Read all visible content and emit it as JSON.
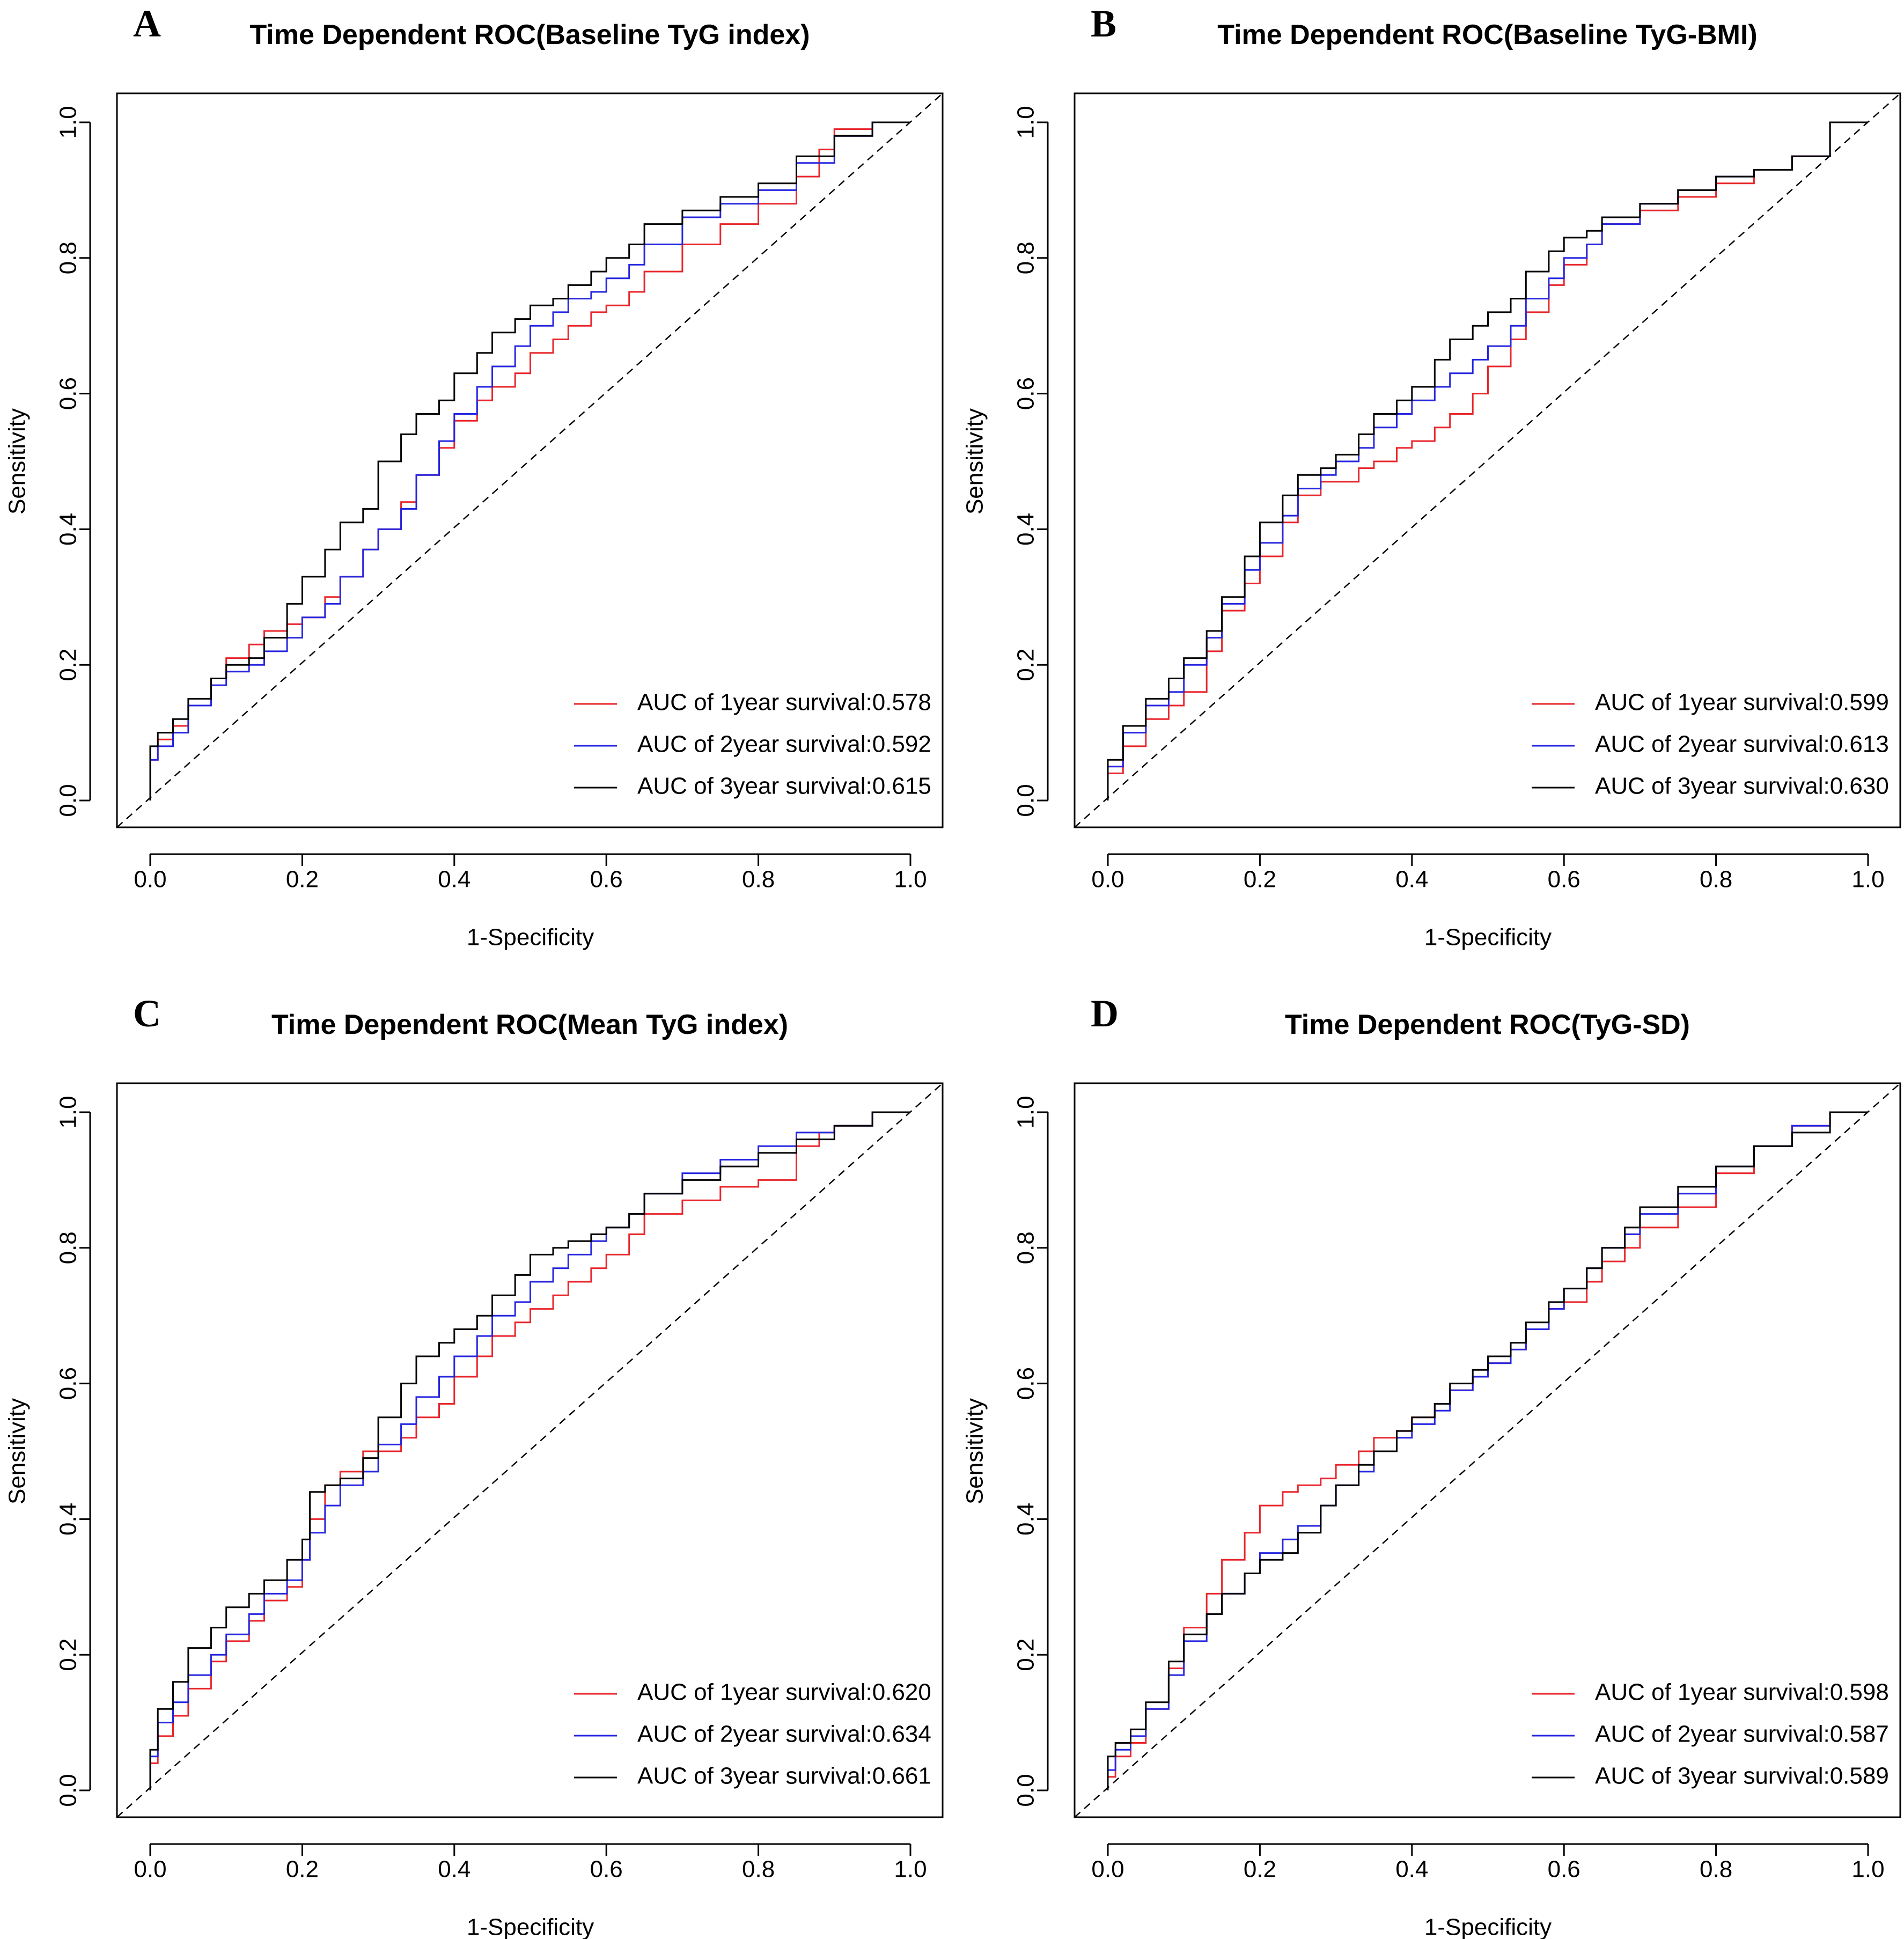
{
  "colors": {
    "1year": "#e8262b",
    "2year": "#2626e0",
    "3year": "#000000",
    "diagonal": "#000000"
  },
  "chart_data": [
    {
      "panel": "A",
      "type": "line",
      "title": "Time Dependent ROC(Baseline TyG index)",
      "xlabel": "1-Specificity",
      "ylabel": "Sensitivity",
      "xlim": [
        0,
        1
      ],
      "ylim": [
        0,
        1
      ],
      "xticks": [
        "0.0",
        "0.2",
        "0.4",
        "0.6",
        "0.8",
        "1.0"
      ],
      "yticks": [
        "0.0",
        "0.2",
        "0.4",
        "0.6",
        "0.8",
        "1.0"
      ],
      "legend_position": "bottom-right",
      "series": [
        {
          "name": "AUC of 1year survival:0.578",
          "key": "1year",
          "auc": 0.578,
          "x": [
            0,
            0,
            0.01,
            0.03,
            0.05,
            0.08,
            0.1,
            0.13,
            0.15,
            0.18,
            0.2,
            0.23,
            0.25,
            0.28,
            0.3,
            0.33,
            0.35,
            0.38,
            0.4,
            0.43,
            0.45,
            0.48,
            0.5,
            0.53,
            0.55,
            0.58,
            0.6,
            0.63,
            0.65,
            0.7,
            0.75,
            0.8,
            0.85,
            0.88,
            0.9,
            0.95,
            1.0
          ],
          "y": [
            0,
            0.03,
            0.06,
            0.09,
            0.11,
            0.14,
            0.18,
            0.21,
            0.23,
            0.25,
            0.26,
            0.27,
            0.3,
            0.33,
            0.37,
            0.4,
            0.44,
            0.48,
            0.52,
            0.56,
            0.59,
            0.61,
            0.63,
            0.66,
            0.68,
            0.7,
            0.72,
            0.73,
            0.75,
            0.78,
            0.82,
            0.85,
            0.88,
            0.92,
            0.96,
            0.99,
            1.0
          ]
        },
        {
          "name": "AUC of 2year survival:0.592",
          "key": "2year",
          "auc": 0.592,
          "x": [
            0,
            0,
            0.01,
            0.03,
            0.05,
            0.08,
            0.1,
            0.13,
            0.15,
            0.18,
            0.2,
            0.23,
            0.25,
            0.28,
            0.3,
            0.33,
            0.35,
            0.38,
            0.4,
            0.43,
            0.45,
            0.48,
            0.5,
            0.53,
            0.55,
            0.58,
            0.6,
            0.63,
            0.65,
            0.7,
            0.75,
            0.8,
            0.85,
            0.9,
            0.95,
            1.0
          ],
          "y": [
            0,
            0.04,
            0.06,
            0.08,
            0.1,
            0.14,
            0.17,
            0.19,
            0.2,
            0.22,
            0.24,
            0.27,
            0.29,
            0.33,
            0.37,
            0.4,
            0.43,
            0.48,
            0.53,
            0.57,
            0.61,
            0.64,
            0.67,
            0.7,
            0.72,
            0.74,
            0.75,
            0.77,
            0.79,
            0.82,
            0.86,
            0.88,
            0.9,
            0.94,
            0.98,
            1.0
          ]
        },
        {
          "name": "AUC of 3year survival:0.615",
          "key": "3year",
          "auc": 0.615,
          "x": [
            0,
            0,
            0.01,
            0.03,
            0.05,
            0.08,
            0.1,
            0.13,
            0.15,
            0.18,
            0.2,
            0.23,
            0.25,
            0.28,
            0.3,
            0.33,
            0.35,
            0.38,
            0.4,
            0.43,
            0.45,
            0.48,
            0.5,
            0.53,
            0.55,
            0.58,
            0.6,
            0.63,
            0.65,
            0.7,
            0.75,
            0.8,
            0.85,
            0.9,
            0.95,
            1.0
          ],
          "y": [
            0,
            0.05,
            0.08,
            0.1,
            0.12,
            0.15,
            0.18,
            0.2,
            0.21,
            0.24,
            0.29,
            0.33,
            0.37,
            0.41,
            0.43,
            0.5,
            0.54,
            0.57,
            0.59,
            0.63,
            0.66,
            0.69,
            0.71,
            0.73,
            0.74,
            0.76,
            0.78,
            0.8,
            0.82,
            0.85,
            0.87,
            0.89,
            0.91,
            0.95,
            0.98,
            1.0
          ]
        }
      ]
    },
    {
      "panel": "B",
      "type": "line",
      "title": "Time Dependent ROC(Baseline TyG-BMI)",
      "xlabel": "1-Specificity",
      "ylabel": "Sensitivity",
      "xlim": [
        0,
        1
      ],
      "ylim": [
        0,
        1
      ],
      "xticks": [
        "0.0",
        "0.2",
        "0.4",
        "0.6",
        "0.8",
        "1.0"
      ],
      "yticks": [
        "0.0",
        "0.2",
        "0.4",
        "0.6",
        "0.8",
        "1.0"
      ],
      "legend_position": "bottom-right",
      "series": [
        {
          "name": "AUC of 1year survival:0.599",
          "key": "1year",
          "auc": 0.599,
          "x": [
            0,
            0.02,
            0.05,
            0.08,
            0.1,
            0.13,
            0.15,
            0.18,
            0.2,
            0.23,
            0.25,
            0.28,
            0.3,
            0.33,
            0.35,
            0.38,
            0.4,
            0.43,
            0.45,
            0.48,
            0.5,
            0.53,
            0.55,
            0.58,
            0.6,
            0.63,
            0.65,
            0.7,
            0.75,
            0.8,
            0.85,
            0.9,
            0.95,
            1.0
          ],
          "y": [
            0,
            0.04,
            0.08,
            0.12,
            0.14,
            0.16,
            0.22,
            0.28,
            0.32,
            0.36,
            0.41,
            0.45,
            0.47,
            0.47,
            0.49,
            0.5,
            0.52,
            0.53,
            0.55,
            0.57,
            0.6,
            0.64,
            0.68,
            0.72,
            0.76,
            0.79,
            0.82,
            0.85,
            0.87,
            0.89,
            0.91,
            0.93,
            0.95,
            1.0
          ]
        },
        {
          "name": "AUC of 2year survival:0.613",
          "key": "2year",
          "auc": 0.613,
          "x": [
            0,
            0.02,
            0.05,
            0.08,
            0.1,
            0.13,
            0.15,
            0.18,
            0.2,
            0.23,
            0.25,
            0.28,
            0.3,
            0.33,
            0.35,
            0.38,
            0.4,
            0.43,
            0.45,
            0.48,
            0.5,
            0.53,
            0.55,
            0.58,
            0.6,
            0.63,
            0.65,
            0.7,
            0.75,
            0.8,
            0.85,
            0.9,
            0.95,
            1.0
          ],
          "y": [
            0,
            0.05,
            0.1,
            0.14,
            0.16,
            0.2,
            0.24,
            0.29,
            0.34,
            0.38,
            0.42,
            0.46,
            0.48,
            0.5,
            0.52,
            0.55,
            0.57,
            0.59,
            0.61,
            0.63,
            0.65,
            0.67,
            0.7,
            0.74,
            0.77,
            0.8,
            0.82,
            0.85,
            0.88,
            0.9,
            0.92,
            0.93,
            0.95,
            1.0
          ]
        },
        {
          "name": "AUC of 3year survival:0.630",
          "key": "3year",
          "auc": 0.63,
          "x": [
            0,
            0.02,
            0.05,
            0.08,
            0.1,
            0.13,
            0.15,
            0.18,
            0.2,
            0.23,
            0.25,
            0.28,
            0.3,
            0.33,
            0.35,
            0.38,
            0.4,
            0.43,
            0.45,
            0.48,
            0.5,
            0.53,
            0.55,
            0.58,
            0.6,
            0.63,
            0.65,
            0.7,
            0.75,
            0.8,
            0.85,
            0.9,
            0.95,
            1.0
          ],
          "y": [
            0,
            0.06,
            0.11,
            0.15,
            0.18,
            0.21,
            0.25,
            0.3,
            0.36,
            0.41,
            0.45,
            0.48,
            0.49,
            0.51,
            0.54,
            0.57,
            0.59,
            0.61,
            0.65,
            0.68,
            0.7,
            0.72,
            0.74,
            0.78,
            0.81,
            0.83,
            0.84,
            0.86,
            0.88,
            0.9,
            0.92,
            0.93,
            0.95,
            1.0
          ]
        }
      ]
    },
    {
      "panel": "C",
      "type": "line",
      "title": "Time Dependent ROC(Mean TyG index)",
      "xlabel": "1-Specificity",
      "ylabel": "Sensitivity",
      "xlim": [
        0,
        1
      ],
      "ylim": [
        0,
        1
      ],
      "xticks": [
        "0.0",
        "0.2",
        "0.4",
        "0.6",
        "0.8",
        "1.0"
      ],
      "yticks": [
        "0.0",
        "0.2",
        "0.4",
        "0.6",
        "0.8",
        "1.0"
      ],
      "legend_position": "bottom-right",
      "series": [
        {
          "name": "AUC of 1year survival:0.620",
          "key": "1year",
          "auc": 0.62,
          "x": [
            0,
            0.01,
            0.03,
            0.05,
            0.08,
            0.1,
            0.13,
            0.15,
            0.18,
            0.2,
            0.21,
            0.23,
            0.25,
            0.28,
            0.3,
            0.33,
            0.35,
            0.38,
            0.4,
            0.43,
            0.45,
            0.48,
            0.5,
            0.53,
            0.55,
            0.58,
            0.6,
            0.63,
            0.65,
            0.7,
            0.75,
            0.8,
            0.85,
            0.88,
            0.9,
            0.95,
            1.0
          ],
          "y": [
            0,
            0.04,
            0.08,
            0.11,
            0.15,
            0.19,
            0.22,
            0.25,
            0.28,
            0.3,
            0.34,
            0.4,
            0.45,
            0.47,
            0.5,
            0.5,
            0.52,
            0.55,
            0.57,
            0.61,
            0.64,
            0.67,
            0.69,
            0.71,
            0.73,
            0.75,
            0.77,
            0.79,
            0.82,
            0.85,
            0.87,
            0.89,
            0.9,
            0.95,
            0.97,
            0.98,
            1.0
          ]
        },
        {
          "name": "AUC of 2year survival:0.634",
          "key": "2year",
          "auc": 0.634,
          "x": [
            0,
            0.01,
            0.03,
            0.05,
            0.08,
            0.1,
            0.13,
            0.15,
            0.18,
            0.2,
            0.21,
            0.23,
            0.25,
            0.28,
            0.3,
            0.33,
            0.35,
            0.38,
            0.4,
            0.43,
            0.45,
            0.48,
            0.5,
            0.53,
            0.55,
            0.58,
            0.6,
            0.63,
            0.65,
            0.7,
            0.75,
            0.8,
            0.85,
            0.9,
            0.95,
            1.0
          ],
          "y": [
            0,
            0.05,
            0.1,
            0.13,
            0.17,
            0.2,
            0.23,
            0.26,
            0.29,
            0.31,
            0.34,
            0.38,
            0.42,
            0.45,
            0.47,
            0.51,
            0.54,
            0.58,
            0.61,
            0.64,
            0.67,
            0.7,
            0.72,
            0.75,
            0.77,
            0.79,
            0.81,
            0.83,
            0.85,
            0.88,
            0.91,
            0.93,
            0.95,
            0.97,
            0.98,
            1.0
          ]
        },
        {
          "name": "AUC of 3year survival:0.661",
          "key": "3year",
          "auc": 0.661,
          "x": [
            0,
            0.01,
            0.03,
            0.05,
            0.08,
            0.1,
            0.13,
            0.15,
            0.18,
            0.2,
            0.21,
            0.23,
            0.25,
            0.28,
            0.3,
            0.33,
            0.35,
            0.38,
            0.4,
            0.43,
            0.45,
            0.48,
            0.5,
            0.53,
            0.55,
            0.58,
            0.6,
            0.63,
            0.65,
            0.7,
            0.75,
            0.8,
            0.85,
            0.9,
            0.95,
            1.0
          ],
          "y": [
            0,
            0.06,
            0.12,
            0.16,
            0.21,
            0.24,
            0.27,
            0.29,
            0.31,
            0.34,
            0.37,
            0.44,
            0.45,
            0.46,
            0.49,
            0.55,
            0.6,
            0.64,
            0.66,
            0.68,
            0.7,
            0.73,
            0.76,
            0.79,
            0.8,
            0.81,
            0.82,
            0.83,
            0.85,
            0.88,
            0.9,
            0.92,
            0.94,
            0.96,
            0.98,
            1.0
          ]
        }
      ]
    },
    {
      "panel": "D",
      "type": "line",
      "title": "Time Dependent ROC(TyG-SD)",
      "xlabel": "1-Specificity",
      "ylabel": "Sensitivity",
      "xlim": [
        0,
        1
      ],
      "ylim": [
        0,
        1
      ],
      "xticks": [
        "0.0",
        "0.2",
        "0.4",
        "0.6",
        "0.8",
        "1.0"
      ],
      "yticks": [
        "0.0",
        "0.2",
        "0.4",
        "0.6",
        "0.8",
        "1.0"
      ],
      "legend_position": "bottom-right",
      "series": [
        {
          "name": "AUC of 1year survival:0.598",
          "key": "1year",
          "auc": 0.598,
          "x": [
            0,
            0.01,
            0.03,
            0.05,
            0.08,
            0.1,
            0.13,
            0.15,
            0.18,
            0.2,
            0.23,
            0.25,
            0.28,
            0.3,
            0.33,
            0.35,
            0.38,
            0.4,
            0.43,
            0.45,
            0.48,
            0.5,
            0.53,
            0.55,
            0.58,
            0.6,
            0.63,
            0.65,
            0.68,
            0.7,
            0.75,
            0.8,
            0.85,
            0.9,
            0.95,
            1.0
          ],
          "y": [
            0,
            0.02,
            0.05,
            0.07,
            0.12,
            0.18,
            0.24,
            0.29,
            0.34,
            0.38,
            0.42,
            0.44,
            0.45,
            0.46,
            0.48,
            0.5,
            0.52,
            0.53,
            0.55,
            0.57,
            0.59,
            0.61,
            0.63,
            0.65,
            0.68,
            0.71,
            0.72,
            0.75,
            0.78,
            0.8,
            0.83,
            0.86,
            0.91,
            0.95,
            0.98,
            1.0
          ]
        },
        {
          "name": "AUC of 2year survival:0.587",
          "key": "2year",
          "auc": 0.587,
          "x": [
            0,
            0.01,
            0.03,
            0.05,
            0.08,
            0.1,
            0.13,
            0.15,
            0.18,
            0.2,
            0.23,
            0.25,
            0.28,
            0.3,
            0.33,
            0.35,
            0.38,
            0.4,
            0.43,
            0.45,
            0.48,
            0.5,
            0.53,
            0.55,
            0.58,
            0.6,
            0.63,
            0.65,
            0.68,
            0.7,
            0.75,
            0.8,
            0.85,
            0.9,
            0.95,
            1.0
          ],
          "y": [
            0,
            0.03,
            0.06,
            0.08,
            0.12,
            0.17,
            0.22,
            0.26,
            0.29,
            0.32,
            0.35,
            0.37,
            0.39,
            0.42,
            0.45,
            0.47,
            0.5,
            0.52,
            0.54,
            0.56,
            0.59,
            0.61,
            0.63,
            0.65,
            0.68,
            0.71,
            0.74,
            0.77,
            0.8,
            0.82,
            0.85,
            0.88,
            0.92,
            0.95,
            0.98,
            1.0
          ]
        },
        {
          "name": "AUC of 3year survival:0.589",
          "key": "3year",
          "auc": 0.589,
          "x": [
            0,
            0.01,
            0.03,
            0.05,
            0.08,
            0.1,
            0.13,
            0.15,
            0.18,
            0.2,
            0.23,
            0.25,
            0.28,
            0.3,
            0.33,
            0.35,
            0.38,
            0.4,
            0.43,
            0.45,
            0.48,
            0.5,
            0.53,
            0.55,
            0.58,
            0.6,
            0.63,
            0.65,
            0.68,
            0.7,
            0.75,
            0.8,
            0.85,
            0.9,
            0.95,
            1.0
          ],
          "y": [
            0,
            0.05,
            0.07,
            0.09,
            0.13,
            0.19,
            0.23,
            0.26,
            0.29,
            0.32,
            0.34,
            0.35,
            0.38,
            0.42,
            0.45,
            0.48,
            0.5,
            0.53,
            0.55,
            0.57,
            0.6,
            0.62,
            0.64,
            0.66,
            0.69,
            0.72,
            0.74,
            0.77,
            0.8,
            0.83,
            0.86,
            0.89,
            0.92,
            0.95,
            0.97,
            1.0
          ]
        }
      ]
    }
  ]
}
